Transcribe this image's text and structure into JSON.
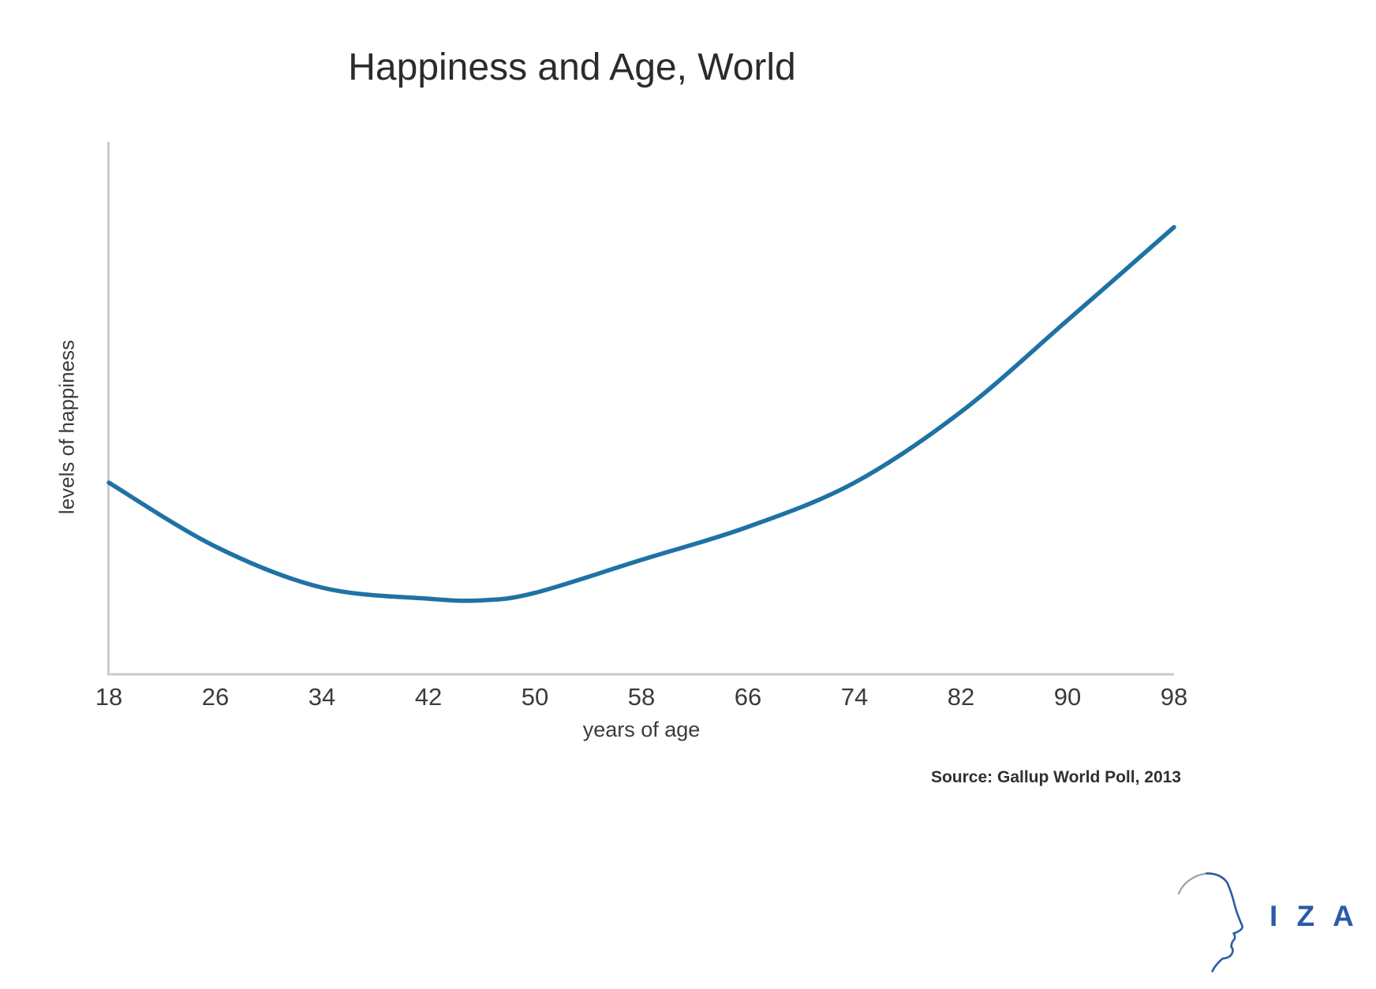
{
  "title": "Happiness and Age, World",
  "x_axis_label": "years of age",
  "y_axis_label": "levels of happiness",
  "source": "Source: Gallup World Poll, 2013",
  "logo": {
    "text": "I Z A",
    "icon": "human-head-profile-icon"
  },
  "colors": {
    "curve": "#1F72A4",
    "axis": "#C8CBCD",
    "text": "#3B3B3B",
    "title": "#2B2B2B",
    "logo_blue": "#2A5BA7"
  },
  "chart_data": {
    "type": "line",
    "title": "Happiness and Age, World",
    "xlabel": "years of age",
    "ylabel": "levels of happiness",
    "x_ticks": [
      18,
      26,
      34,
      42,
      50,
      58,
      66,
      74,
      82,
      90,
      98
    ],
    "x": [
      18,
      26,
      34,
      42,
      46,
      50,
      58,
      66,
      74,
      82,
      90,
      98
    ],
    "y": [
      36,
      24,
      16.3,
      14.2,
      13.9,
      15.3,
      21.5,
      27.7,
      36,
      49.3,
      66.5,
      84
    ],
    "xlim": [
      18,
      98
    ],
    "ylim": [
      0,
      100
    ],
    "grid": false,
    "legend": null,
    "line_color": "#1F72A4",
    "source": "Source: Gallup World Poll, 2013"
  }
}
